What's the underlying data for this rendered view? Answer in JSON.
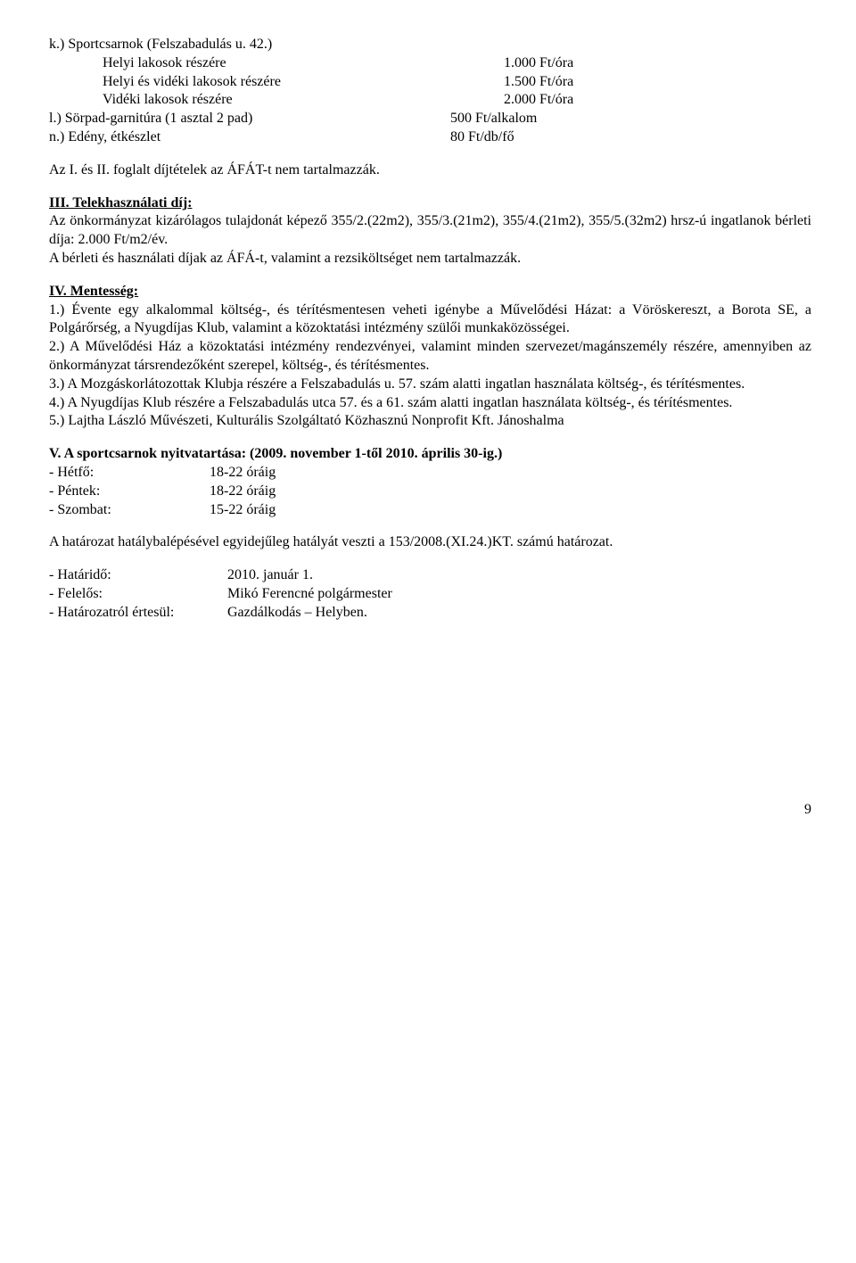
{
  "section_k": {
    "title": "k.) Sportcsarnok (Felszabadulás u. 42.)",
    "rows": [
      {
        "label": "Helyi lakosok részére",
        "value": "1.000 Ft/óra"
      },
      {
        "label": "Helyi és vidéki lakosok részére",
        "value": "1.500 Ft/óra"
      },
      {
        "label": "Vidéki lakosok részére",
        "value": "2.000 Ft/óra"
      }
    ]
  },
  "section_l": {
    "label": "l.) Sörpad-garnitúra (1 asztal 2 pad)",
    "value": "500 Ft/alkalom"
  },
  "section_n": {
    "label": "n.) Edény, étkészlet",
    "value": "80 Ft/db/fő"
  },
  "note1": "Az I. és II. foglalt díjtételek az ÁFÁT-t nem tartalmazzák.",
  "section_iii": {
    "title": "III. Telekhasználati díj:",
    "text": "Az önkormányzat kizárólagos tulajdonát képező 355/2.(22m2), 355/3.(21m2), 355/4.(21m2), 355/5.(32m2) hrsz-ú ingatlanok bérleti díja: 2.000 Ft/m2/év.",
    "text2": "A bérleti és használati díjak az ÁFÁ-t, valamint a rezsiköltséget nem tartalmazzák."
  },
  "section_iv": {
    "title": "IV. Mentesség:",
    "p1": "1.) Évente egy alkalommal költség-, és térítésmentesen veheti igénybe a Művelődési Házat: a Vöröskereszt, a Borota SE, a Polgárőrség, a Nyugdíjas Klub, valamint a közoktatási intézmény szülői munkaközösségei.",
    "p2": "2.) A Művelődési Ház a közoktatási intézmény rendezvényei, valamint minden szervezet/magánszemély részére, amennyiben az önkormányzat társrendezőként szerepel, költség-, és térítésmentes.",
    "p3": "3.) A Mozgáskorlátozottak Klubja részére a Felszabadulás u. 57. szám alatti ingatlan használata költség-, és térítésmentes.",
    "p4": "4.) A Nyugdíjas Klub részére a Felszabadulás utca 57. és a 61. szám alatti ingatlan használata költség-, és térítésmentes.",
    "p5": "5.) Lajtha László Művészeti, Kulturális Szolgáltató Közhasznú Nonprofit Kft. Jánoshalma"
  },
  "section_v": {
    "title": "V. A sportcsarnok nyitvatartása: (2009. november 1-től 2010. április 30-ig.)",
    "rows": [
      {
        "label": "- Hétfő:",
        "value": "18-22 óráig"
      },
      {
        "label": "- Péntek:",
        "value": "18-22 óráig"
      },
      {
        "label": "- Szombat:",
        "value": "15-22 óráig"
      }
    ]
  },
  "resolution": "A határozat hatálybalépésével egyidejűleg hatályát veszti a 153/2008.(XI.24.)KT. számú határozat.",
  "footer": {
    "rows": [
      {
        "label": "-   Határidő:",
        "value": "2010. január 1."
      },
      {
        "label": "-   Felelős:",
        "value": "Mikó Ferencné polgármester"
      },
      {
        "label": "-   Határozatról értesül:",
        "value": "Gazdálkodás – Helyben."
      }
    ]
  },
  "page": "9"
}
